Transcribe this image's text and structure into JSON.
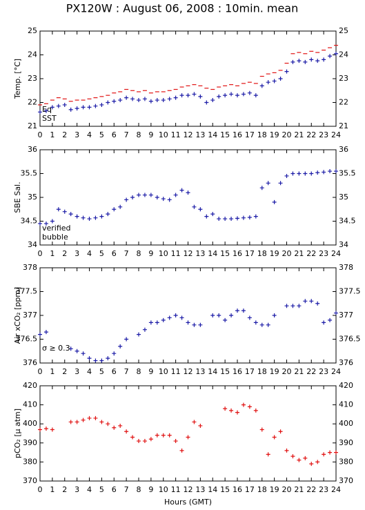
{
  "title": "PX120W : August 06, 2008 : 10min. mean",
  "chart_data": [
    {
      "type": "scatter",
      "ylabel": "Temp. [°C]",
      "xlim": [
        0,
        24
      ],
      "xticks": [
        0,
        1,
        2,
        3,
        4,
        5,
        6,
        7,
        8,
        9,
        10,
        11,
        12,
        13,
        14,
        15,
        16,
        17,
        18,
        19,
        20,
        21,
        22,
        23,
        24
      ],
      "ylim": [
        21,
        25
      ],
      "yticks": [
        21,
        22,
        23,
        24,
        25
      ],
      "x": [
        0,
        0.5,
        1,
        1.5,
        2,
        2.5,
        3,
        3.5,
        4,
        4.5,
        5,
        5.5,
        6,
        6.5,
        7,
        7.5,
        8,
        8.5,
        9,
        9.5,
        10,
        10.5,
        11,
        11.5,
        12,
        12.5,
        13,
        13.5,
        14,
        14.5,
        15,
        15.5,
        16,
        16.5,
        17,
        17.5,
        18,
        18.5,
        19,
        19.5,
        20,
        20.5,
        21,
        21.5,
        22,
        22.5,
        23,
        23.5,
        24
      ],
      "series": [
        {
          "name": "Eq",
          "color": "#e01010",
          "marker": "dash",
          "values": [
            21.9,
            21.95,
            22.1,
            22.2,
            22.15,
            22.05,
            22.1,
            22.1,
            22.15,
            22.2,
            22.25,
            22.3,
            22.4,
            22.45,
            22.55,
            22.5,
            22.45,
            22.5,
            22.4,
            22.45,
            22.45,
            22.5,
            22.55,
            22.65,
            22.7,
            22.75,
            22.7,
            22.6,
            22.55,
            22.65,
            22.7,
            22.75,
            22.7,
            22.8,
            22.85,
            22.8,
            23.1,
            23.2,
            23.25,
            23.35,
            23.65,
            24.05,
            24.1,
            24.05,
            24.15,
            24.1,
            24.2,
            24.3,
            24.4
          ]
        },
        {
          "name": "SST",
          "color": "#1a1aa6",
          "marker": "plus",
          "values": [
            21.6,
            21.65,
            21.8,
            21.85,
            21.9,
            21.7,
            21.75,
            21.8,
            21.8,
            21.85,
            21.9,
            22.0,
            22.05,
            22.1,
            22.2,
            22.15,
            22.1,
            22.15,
            22.05,
            22.1,
            22.1,
            22.15,
            22.2,
            22.3,
            22.3,
            22.35,
            22.25,
            22.0,
            22.1,
            22.25,
            22.3,
            22.35,
            22.3,
            22.35,
            22.4,
            22.3,
            22.7,
            22.85,
            22.9,
            23.0,
            23.3,
            23.7,
            23.75,
            23.7,
            23.8,
            23.75,
            23.8,
            23.95,
            24.05
          ]
        }
      ]
    },
    {
      "type": "scatter",
      "ylabel": "SBE Sal.",
      "xlim": [
        0,
        24
      ],
      "xticks": [
        0,
        1,
        2,
        3,
        4,
        5,
        6,
        7,
        8,
        9,
        10,
        11,
        12,
        13,
        14,
        15,
        16,
        17,
        18,
        19,
        20,
        21,
        22,
        23,
        24
      ],
      "ylim": [
        34,
        36
      ],
      "yticks": [
        34,
        34.5,
        35,
        35.5,
        36
      ],
      "x": [
        0,
        0.5,
        1,
        1.5,
        2,
        2.5,
        3,
        3.5,
        4,
        4.5,
        5,
        5.5,
        6,
        6.5,
        7,
        7.5,
        8,
        8.5,
        9,
        9.5,
        10,
        10.5,
        11,
        11.5,
        12,
        12.5,
        13,
        13.5,
        14,
        14.5,
        15,
        15.5,
        16,
        16.5,
        17,
        17.5,
        18,
        18.5,
        19,
        19.5,
        20,
        20.5,
        21,
        21.5,
        22,
        22.5,
        23,
        23.5,
        24
      ],
      "series": [
        {
          "name": "verified",
          "color": "#1a1aa6",
          "marker": "plus",
          "values": [
            34.45,
            34.45,
            34.5,
            34.75,
            34.7,
            34.65,
            34.6,
            34.57,
            34.55,
            34.57,
            34.6,
            34.65,
            34.75,
            34.8,
            34.95,
            35.0,
            35.05,
            35.05,
            35.05,
            35.0,
            34.97,
            34.95,
            35.05,
            35.15,
            35.1,
            34.8,
            34.75,
            34.6,
            34.65,
            34.55,
            34.55,
            34.55,
            34.56,
            34.57,
            34.58,
            34.6,
            35.2,
            35.3,
            34.9,
            35.3,
            35.45,
            35.5,
            35.5,
            35.5,
            35.5,
            35.52,
            35.53,
            35.55,
            35.55
          ]
        },
        {
          "name": "bubble",
          "color": "#cc22cc",
          "marker": "plus",
          "values": []
        }
      ]
    },
    {
      "type": "scatter",
      "ylabel": "Air xCO₂ [ppm]",
      "annotation": "σ ≥ 0.3",
      "annotation_color": "#cc22cc",
      "xlim": [
        0,
        24
      ],
      "xticks": [
        0,
        1,
        2,
        3,
        4,
        5,
        6,
        7,
        8,
        9,
        10,
        11,
        12,
        13,
        14,
        15,
        16,
        17,
        18,
        19,
        20,
        21,
        22,
        23,
        24
      ],
      "ylim": [
        376,
        378
      ],
      "yticks": [
        376,
        376.5,
        377,
        377.5,
        378
      ],
      "x": [
        0,
        0.5,
        1,
        1.5,
        2,
        2.5,
        3,
        3.5,
        4,
        4.5,
        5,
        5.5,
        6,
        6.5,
        7,
        7.5,
        8,
        8.5,
        9,
        9.5,
        10,
        10.5,
        11,
        11.5,
        12,
        12.5,
        13,
        13.5,
        14,
        14.5,
        15,
        15.5,
        16,
        16.5,
        17,
        17.5,
        18,
        18.5,
        19,
        19.5,
        20,
        20.5,
        21,
        21.5,
        22,
        22.5,
        23,
        23.5,
        24
      ],
      "series": [
        {
          "color": "#1a1aa6",
          "marker": "plus",
          "values": [
            376.6,
            376.65,
            null,
            null,
            null,
            376.3,
            376.25,
            376.2,
            376.1,
            376.05,
            376.05,
            376.1,
            376.2,
            376.35,
            376.5,
            null,
            376.6,
            376.7,
            376.85,
            376.85,
            376.9,
            376.95,
            377.0,
            376.95,
            376.85,
            376.8,
            376.8,
            null,
            377.0,
            377.0,
            376.9,
            377.0,
            377.1,
            377.1,
            376.95,
            376.85,
            376.8,
            376.8,
            377.0,
            null,
            377.2,
            377.2,
            377.2,
            377.3,
            377.3,
            377.25,
            376.85,
            376.9,
            377.05
          ]
        }
      ]
    },
    {
      "type": "scatter",
      "ylabel": "pCO₂ [μ atm]",
      "xlabel": "Hours (GMT)",
      "xlim": [
        0,
        24
      ],
      "xticks": [
        0,
        1,
        2,
        3,
        4,
        5,
        6,
        7,
        8,
        9,
        10,
        11,
        12,
        13,
        14,
        15,
        16,
        17,
        18,
        19,
        20,
        21,
        22,
        23,
        24
      ],
      "ylim": [
        370,
        420
      ],
      "yticks": [
        370,
        380,
        390,
        400,
        410,
        420
      ],
      "x": [
        0,
        0.5,
        1,
        1.5,
        2,
        2.5,
        3,
        3.5,
        4,
        4.5,
        5,
        5.5,
        6,
        6.5,
        7,
        7.5,
        8,
        8.5,
        9,
        9.5,
        10,
        10.5,
        11,
        11.5,
        12,
        12.5,
        13,
        13.5,
        14,
        14.5,
        15,
        15.5,
        16,
        16.5,
        17,
        17.5,
        18,
        18.5,
        19,
        19.5,
        20,
        20.5,
        21,
        21.5,
        22,
        22.5,
        23,
        23.5,
        24
      ],
      "series": [
        {
          "color": "#e01010",
          "marker": "plus",
          "values": [
            397,
            397.5,
            397,
            null,
            null,
            401,
            401,
            402,
            403,
            403,
            401,
            400,
            398,
            399,
            396,
            393,
            391,
            391,
            392,
            394,
            394,
            394,
            391,
            386,
            393,
            401,
            399,
            null,
            null,
            null,
            408,
            407,
            406,
            410,
            409,
            407,
            397,
            384,
            393,
            396,
            386,
            383,
            381,
            382,
            379,
            380,
            384,
            385,
            385
          ]
        }
      ]
    }
  ]
}
